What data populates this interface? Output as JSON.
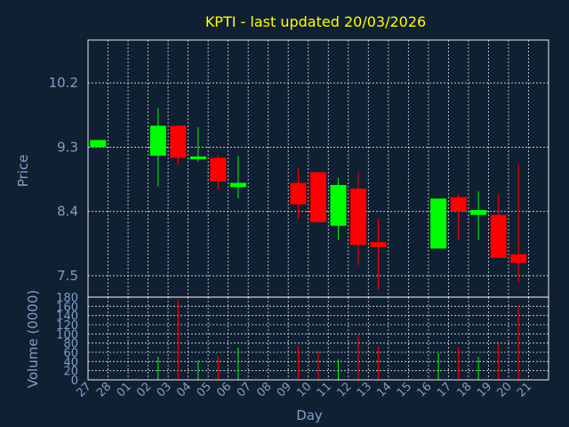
{
  "chart_data": {
    "type": "candlestick",
    "title": "KPTI - last updated 20/03/2026",
    "xlabel": "Day",
    "price_panel": {
      "ylabel": "Price",
      "yticks": [
        7.5,
        8.4,
        9.3,
        10.2
      ],
      "ylim": [
        7.2,
        10.8
      ]
    },
    "volume_panel": {
      "ylabel": "Volume (0000)",
      "yticks": [
        0,
        20,
        40,
        60,
        80,
        100,
        120,
        140,
        160,
        180
      ],
      "ylim": [
        0,
        180
      ]
    },
    "x_tick_labels": [
      "27",
      "28",
      "01",
      "02",
      "03",
      "04",
      "05",
      "06",
      "07",
      "08",
      "09",
      "10",
      "11",
      "12",
      "13",
      "14",
      "15",
      "16",
      "17",
      "18",
      "19",
      "20",
      "21"
    ],
    "candles": [
      {
        "day": "27",
        "open": 9.3,
        "close": 9.4,
        "high": 9.4,
        "low": 9.3,
        "volume": 0
      },
      {
        "day": "02",
        "open": 9.18,
        "close": 9.6,
        "high": 9.85,
        "low": 8.75,
        "volume": 50
      },
      {
        "day": "03",
        "open": 9.6,
        "close": 9.15,
        "high": 9.6,
        "low": 9.05,
        "volume": 175
      },
      {
        "day": "04",
        "open": 9.13,
        "close": 9.17,
        "high": 9.58,
        "low": 9.1,
        "volume": 42
      },
      {
        "day": "05",
        "open": 9.15,
        "close": 8.82,
        "high": 9.18,
        "low": 8.7,
        "volume": 50
      },
      {
        "day": "06",
        "open": 8.74,
        "close": 8.8,
        "high": 9.18,
        "low": 8.58,
        "volume": 70
      },
      {
        "day": "09",
        "open": 8.8,
        "close": 8.5,
        "high": 9.0,
        "low": 8.3,
        "volume": 75
      },
      {
        "day": "10",
        "open": 8.95,
        "close": 8.25,
        "high": 8.95,
        "low": 8.25,
        "volume": 62
      },
      {
        "day": "11",
        "open": 8.2,
        "close": 8.77,
        "high": 8.87,
        "low": 8.0,
        "volume": 45
      },
      {
        "day": "12",
        "open": 8.72,
        "close": 7.93,
        "high": 8.95,
        "low": 7.65,
        "volume": 98
      },
      {
        "day": "13",
        "open": 7.97,
        "close": 7.9,
        "high": 8.3,
        "low": 7.3,
        "volume": 72
      },
      {
        "day": "16",
        "open": 7.88,
        "close": 8.58,
        "high": 8.58,
        "low": 7.88,
        "volume": 58
      },
      {
        "day": "17",
        "open": 8.6,
        "close": 8.4,
        "high": 8.65,
        "low": 8.0,
        "volume": 72
      },
      {
        "day": "18",
        "open": 8.35,
        "close": 8.42,
        "high": 8.68,
        "low": 8.0,
        "volume": 50
      },
      {
        "day": "19",
        "open": 8.35,
        "close": 7.75,
        "high": 8.65,
        "low": 7.75,
        "volume": 80
      },
      {
        "day": "20",
        "open": 7.8,
        "close": 7.68,
        "high": 9.07,
        "low": 7.4,
        "volume": 162
      }
    ],
    "colors": {
      "up": "#00ff00",
      "down": "#ff0000",
      "background": "#102033",
      "grid": "#ffffff",
      "title": "#ffff00",
      "text": "#7f9ec7"
    },
    "grid": true
  }
}
